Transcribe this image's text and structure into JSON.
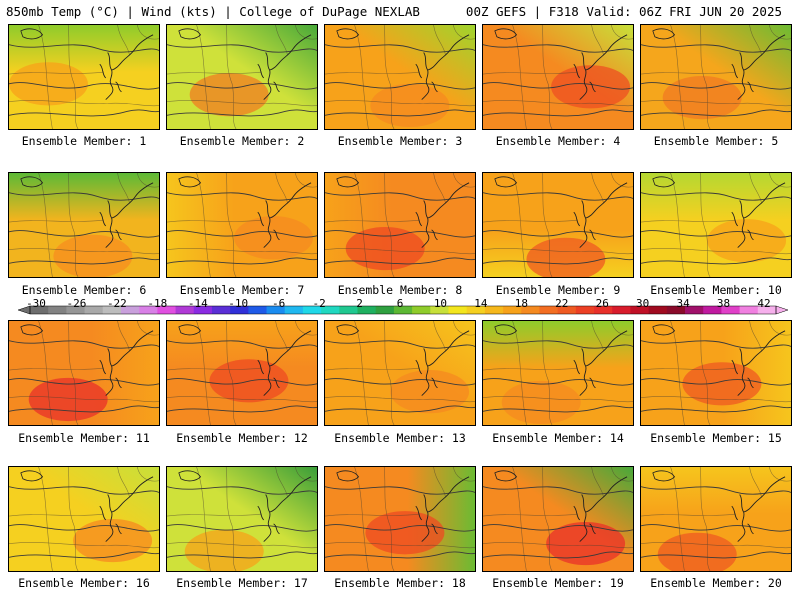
{
  "header": {
    "left_title": "850mb Temp (°C) | Wind (kts) | College of DuPage NEXLAB",
    "right_title": "00Z GEFS | F318 Valid: 06Z FRI JUN 20 2025"
  },
  "members": [
    {
      "label": "Ensemble Member: 1",
      "base": "#f5d020",
      "hot": "#f7a21a",
      "cool": "#8fcc2b",
      "cool_pos": "top"
    },
    {
      "label": "Ensemble Member: 2",
      "base": "#cfe13a",
      "hot": "#f07c22",
      "cool": "#48a93a",
      "cool_pos": "top-right"
    },
    {
      "label": "Ensemble Member: 3",
      "base": "#f7a21a",
      "hot": "#f58a20",
      "cool": "#9fd42d",
      "cool_pos": "top-right"
    },
    {
      "label": "Ensemble Member: 4",
      "base": "#f58a20",
      "hot": "#ee4f22",
      "cool": "#c7e03a",
      "cool_pos": "top-right"
    },
    {
      "label": "Ensemble Member: 5",
      "base": "#f5a61c",
      "hot": "#f07a22",
      "cool": "#6cbb33",
      "cool_pos": "top-right"
    },
    {
      "label": "Ensemble Member: 6",
      "base": "#f2b41e",
      "hot": "#f78e1f",
      "cool": "#5dba36",
      "cool_pos": "top"
    },
    {
      "label": "Ensemble Member: 7",
      "base": "#f7a21a",
      "hot": "#f58a20",
      "cool": "#f6c51d",
      "cool_pos": "left"
    },
    {
      "label": "Ensemble Member: 8",
      "base": "#f58a20",
      "hot": "#ee4a22",
      "cool": "#f7a21a",
      "cool_pos": "left"
    },
    {
      "label": "Ensemble Member: 9",
      "base": "#f7a21a",
      "hot": "#ef5a22",
      "cool": "#f5d020",
      "cool_pos": "bottom"
    },
    {
      "label": "Ensemble Member: 10",
      "base": "#f5d020",
      "hot": "#f7a21a",
      "cool": "#b5d831",
      "cool_pos": "top"
    },
    {
      "label": "Ensemble Member: 11",
      "base": "#f58a20",
      "hot": "#e8302a",
      "cool": "#f7a21a",
      "cool_pos": "right"
    },
    {
      "label": "Ensemble Member: 12",
      "base": "#f58a20",
      "hot": "#ee4a22",
      "cool": "#f7a21a",
      "cool_pos": "top"
    },
    {
      "label": "Ensemble Member: 13",
      "base": "#f7a21a",
      "hot": "#f58a20",
      "cool": "#f6c51d",
      "cool_pos": "top-right"
    },
    {
      "label": "Ensemble Member: 14",
      "base": "#f7a21a",
      "hot": "#f58a20",
      "cool": "#8fcc2b",
      "cool_pos": "top"
    },
    {
      "label": "Ensemble Member: 15",
      "base": "#f7a21a",
      "hot": "#ef5a22",
      "cool": "#f6c51d",
      "cool_pos": "right"
    },
    {
      "label": "Ensemble Member: 16",
      "base": "#f5d020",
      "hot": "#f58a20",
      "cool": "#c7e03a",
      "cool_pos": "top-right"
    },
    {
      "label": "Ensemble Member: 17",
      "base": "#cfe13a",
      "hot": "#f7a21a",
      "cool": "#3a9e3a",
      "cool_pos": "top-right"
    },
    {
      "label": "Ensemble Member: 18",
      "base": "#f58a20",
      "hot": "#ee4a22",
      "cool": "#6cbb33",
      "cool_pos": "right"
    },
    {
      "label": "Ensemble Member: 19",
      "base": "#f58a20",
      "hot": "#e8302a",
      "cool": "#48a93a",
      "cool_pos": "top-right"
    },
    {
      "label": "Ensemble Member: 20",
      "base": "#f7a21a",
      "hot": "#ef5a22",
      "cool": "#f6c51d",
      "cool_pos": "top"
    }
  ],
  "colorbar": {
    "labels": [
      "-30",
      "-26",
      "-22",
      "-18",
      "-14",
      "-10",
      "-6",
      "-2",
      "2",
      "6",
      "10",
      "14",
      "18",
      "22",
      "26",
      "30",
      "34",
      "38",
      "42"
    ],
    "colors": [
      "#6e6e6e",
      "#828282",
      "#969696",
      "#a9a9a9",
      "#bdbdbd",
      "#c9a0dc",
      "#d880e6",
      "#e04fe0",
      "#b03ad6",
      "#8a2be2",
      "#5a2fd6",
      "#3030d8",
      "#1f5ae8",
      "#1a8cf0",
      "#20b8f0",
      "#20d8e8",
      "#20d8c0",
      "#20c890",
      "#1fb060",
      "#2fa040",
      "#5cb834",
      "#8fcc2b",
      "#c7e03a",
      "#f3e61e",
      "#f5d020",
      "#f6b81c",
      "#f7a21a",
      "#f58a20",
      "#f36e22",
      "#ef5a22",
      "#ec4024",
      "#e8302a",
      "#d81c2c",
      "#c01026",
      "#a00a20",
      "#8a0a2a",
      "#a0106a",
      "#c01aa0",
      "#e040c8",
      "#f080e0",
      "#f6b0ec"
    ]
  }
}
